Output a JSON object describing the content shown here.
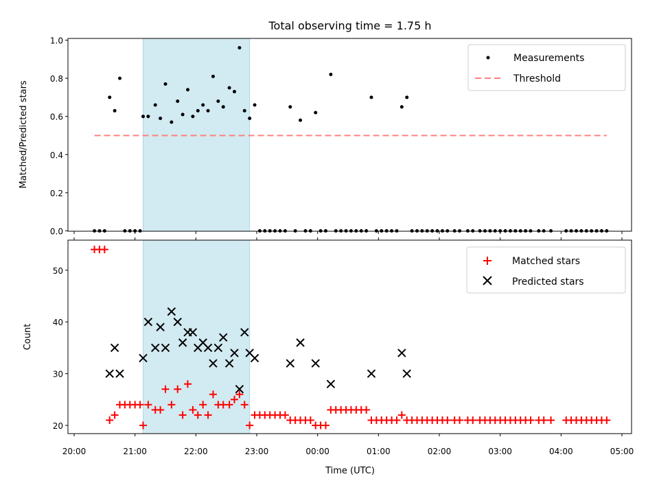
{
  "chart_data": [
    {
      "type": "scatter",
      "title": "Total observing time = 1.75 h",
      "xlabel": "",
      "ylabel": "Matched/Predicted stars",
      "xlim": [
        "20:00",
        "05:00"
      ],
      "ylim": [
        0,
        1.0
      ],
      "yticks": [
        "0.0",
        "0.2",
        "0.4",
        "0.6",
        "0.8",
        "1.0"
      ],
      "highlight_span": [
        "21:08",
        "22:53"
      ],
      "highlight_color": "#add8e6",
      "legend_position": "upper-right",
      "series": [
        {
          "name": "Measurements",
          "color": "#000000",
          "marker": "dot",
          "points": [
            [
              "20:20",
              0
            ],
            [
              "20:25",
              0
            ],
            [
              "20:30",
              0
            ],
            [
              "20:35",
              0.7
            ],
            [
              "20:40",
              0.63
            ],
            [
              "20:45",
              0.8
            ],
            [
              "20:50",
              0
            ],
            [
              "20:55",
              0
            ],
            [
              "21:00",
              0
            ],
            [
              "21:05",
              0
            ],
            [
              "21:08",
              0.6
            ],
            [
              "21:13",
              0.6
            ],
            [
              "21:20",
              0.66
            ],
            [
              "21:25",
              0.59
            ],
            [
              "21:30",
              0.77
            ],
            [
              "21:36",
              0.57
            ],
            [
              "21:42",
              0.68
            ],
            [
              "21:47",
              0.61
            ],
            [
              "21:52",
              0.74
            ],
            [
              "21:57",
              0.6
            ],
            [
              "22:02",
              0.63
            ],
            [
              "22:07",
              0.66
            ],
            [
              "22:12",
              0.63
            ],
            [
              "22:17",
              0.81
            ],
            [
              "22:22",
              0.68
            ],
            [
              "22:27",
              0.65
            ],
            [
              "22:33",
              0.75
            ],
            [
              "22:38",
              0.73
            ],
            [
              "22:43",
              0.96
            ],
            [
              "22:48",
              0.63
            ],
            [
              "22:53",
              0.59
            ],
            [
              "22:58",
              0.66
            ],
            [
              "23:03",
              0
            ],
            [
              "23:08",
              0
            ],
            [
              "23:13",
              0
            ],
            [
              "23:18",
              0
            ],
            [
              "23:23",
              0
            ],
            [
              "23:28",
              0
            ],
            [
              "23:33",
              0.65
            ],
            [
              "23:38",
              0
            ],
            [
              "23:43",
              0.58
            ],
            [
              "23:48",
              0
            ],
            [
              "23:53",
              0
            ],
            [
              "23:58",
              0.62
            ],
            [
              "00:03",
              0
            ],
            [
              "00:08",
              0
            ],
            [
              "00:13",
              0.82
            ],
            [
              "00:18",
              0
            ],
            [
              "00:23",
              0
            ],
            [
              "00:28",
              0
            ],
            [
              "00:33",
              0
            ],
            [
              "00:38",
              0
            ],
            [
              "00:43",
              0
            ],
            [
              "00:48",
              0
            ],
            [
              "00:53",
              0.7
            ],
            [
              "00:58",
              0
            ],
            [
              "01:03",
              0
            ],
            [
              "01:08",
              0
            ],
            [
              "01:13",
              0
            ],
            [
              "01:18",
              0
            ],
            [
              "01:23",
              0.65
            ],
            [
              "01:28",
              0.7
            ],
            [
              "01:33",
              0
            ],
            [
              "01:38",
              0
            ],
            [
              "01:43",
              0
            ],
            [
              "01:48",
              0
            ],
            [
              "01:53",
              0
            ],
            [
              "01:58",
              0
            ],
            [
              "02:03",
              0
            ],
            [
              "02:08",
              0
            ],
            [
              "02:15",
              0
            ],
            [
              "02:20",
              0
            ],
            [
              "02:28",
              0
            ],
            [
              "02:33",
              0
            ],
            [
              "02:40",
              0
            ],
            [
              "02:45",
              0
            ],
            [
              "02:50",
              0
            ],
            [
              "02:55",
              0
            ],
            [
              "03:00",
              0
            ],
            [
              "03:05",
              0
            ],
            [
              "03:10",
              0
            ],
            [
              "03:15",
              0
            ],
            [
              "03:20",
              0
            ],
            [
              "03:25",
              0
            ],
            [
              "03:30",
              0
            ],
            [
              "03:38",
              0
            ],
            [
              "03:43",
              0
            ],
            [
              "03:50",
              0
            ],
            [
              "04:05",
              0
            ],
            [
              "04:10",
              0
            ],
            [
              "04:15",
              0
            ],
            [
              "04:20",
              0
            ],
            [
              "04:25",
              0
            ],
            [
              "04:30",
              0
            ],
            [
              "04:35",
              0
            ],
            [
              "04:40",
              0
            ],
            [
              "04:45",
              0
            ]
          ]
        },
        {
          "name": "Threshold",
          "color": "#ff7f7f",
          "style": "dashed",
          "y": 0.5,
          "x_range": [
            "20:20",
            "04:45"
          ]
        }
      ]
    },
    {
      "type": "scatter",
      "title": "",
      "xlabel": "Time (UTC)",
      "ylabel": "Count",
      "xlim": [
        "20:00",
        "05:00"
      ],
      "ylim": [
        18,
        56
      ],
      "yticks": [
        "20",
        "30",
        "40",
        "50"
      ],
      "xticks": [
        "20:00",
        "21:00",
        "22:00",
        "23:00",
        "00:00",
        "01:00",
        "02:00",
        "03:00",
        "04:00",
        "05:00"
      ],
      "highlight_span": [
        "21:08",
        "22:53"
      ],
      "highlight_color": "#add8e6",
      "legend_position": "upper-right",
      "series": [
        {
          "name": "Matched stars",
          "color": "#ff0000",
          "marker": "plus",
          "points": [
            [
              "20:20",
              54
            ],
            [
              "20:25",
              54
            ],
            [
              "20:30",
              54
            ],
            [
              "20:35",
              21
            ],
            [
              "20:40",
              22
            ],
            [
              "20:45",
              24
            ],
            [
              "20:50",
              24
            ],
            [
              "20:55",
              24
            ],
            [
              "21:00",
              24
            ],
            [
              "21:05",
              24
            ],
            [
              "21:08",
              20
            ],
            [
              "21:13",
              24
            ],
            [
              "21:20",
              23
            ],
            [
              "21:25",
              23
            ],
            [
              "21:30",
              27
            ],
            [
              "21:36",
              24
            ],
            [
              "21:42",
              27
            ],
            [
              "21:47",
              22
            ],
            [
              "21:52",
              28
            ],
            [
              "21:57",
              23
            ],
            [
              "22:02",
              22
            ],
            [
              "22:07",
              24
            ],
            [
              "22:12",
              22
            ],
            [
              "22:17",
              26
            ],
            [
              "22:22",
              24
            ],
            [
              "22:27",
              24
            ],
            [
              "22:33",
              24
            ],
            [
              "22:38",
              25
            ],
            [
              "22:43",
              26
            ],
            [
              "22:48",
              24
            ],
            [
              "22:53",
              20
            ],
            [
              "22:58",
              22
            ],
            [
              "23:03",
              22
            ],
            [
              "23:08",
              22
            ],
            [
              "23:13",
              22
            ],
            [
              "23:18",
              22
            ],
            [
              "23:23",
              22
            ],
            [
              "23:28",
              22
            ],
            [
              "23:33",
              21
            ],
            [
              "23:38",
              21
            ],
            [
              "23:43",
              21
            ],
            [
              "23:48",
              21
            ],
            [
              "23:53",
              21
            ],
            [
              "23:58",
              20
            ],
            [
              "00:03",
              20
            ],
            [
              "00:08",
              20
            ],
            [
              "00:13",
              23
            ],
            [
              "00:18",
              23
            ],
            [
              "00:23",
              23
            ],
            [
              "00:28",
              23
            ],
            [
              "00:33",
              23
            ],
            [
              "00:38",
              23
            ],
            [
              "00:43",
              23
            ],
            [
              "00:48",
              23
            ],
            [
              "00:53",
              21
            ],
            [
              "00:58",
              21
            ],
            [
              "01:03",
              21
            ],
            [
              "01:08",
              21
            ],
            [
              "01:13",
              21
            ],
            [
              "01:18",
              21
            ],
            [
              "01:23",
              22
            ],
            [
              "01:28",
              21
            ],
            [
              "01:33",
              21
            ],
            [
              "01:38",
              21
            ],
            [
              "01:43",
              21
            ],
            [
              "01:48",
              21
            ],
            [
              "01:53",
              21
            ],
            [
              "01:58",
              21
            ],
            [
              "02:03",
              21
            ],
            [
              "02:08",
              21
            ],
            [
              "02:15",
              21
            ],
            [
              "02:20",
              21
            ],
            [
              "02:28",
              21
            ],
            [
              "02:33",
              21
            ],
            [
              "02:40",
              21
            ],
            [
              "02:45",
              21
            ],
            [
              "02:50",
              21
            ],
            [
              "02:55",
              21
            ],
            [
              "03:00",
              21
            ],
            [
              "03:05",
              21
            ],
            [
              "03:10",
              21
            ],
            [
              "03:15",
              21
            ],
            [
              "03:20",
              21
            ],
            [
              "03:25",
              21
            ],
            [
              "03:30",
              21
            ],
            [
              "03:38",
              21
            ],
            [
              "03:43",
              21
            ],
            [
              "03:50",
              21
            ],
            [
              "04:05",
              21
            ],
            [
              "04:10",
              21
            ],
            [
              "04:15",
              21
            ],
            [
              "04:20",
              21
            ],
            [
              "04:25",
              21
            ],
            [
              "04:30",
              21
            ],
            [
              "04:35",
              21
            ],
            [
              "04:40",
              21
            ],
            [
              "04:45",
              21
            ]
          ]
        },
        {
          "name": "Predicted stars",
          "color": "#000000",
          "marker": "x",
          "points": [
            [
              "20:35",
              30
            ],
            [
              "20:40",
              35
            ],
            [
              "20:45",
              30
            ],
            [
              "21:08",
              33
            ],
            [
              "21:13",
              40
            ],
            [
              "21:20",
              35
            ],
            [
              "21:25",
              39
            ],
            [
              "21:30",
              35
            ],
            [
              "21:36",
              42
            ],
            [
              "21:42",
              40
            ],
            [
              "21:47",
              36
            ],
            [
              "21:52",
              38
            ],
            [
              "21:57",
              38
            ],
            [
              "22:02",
              35
            ],
            [
              "22:07",
              36
            ],
            [
              "22:12",
              35
            ],
            [
              "22:17",
              32
            ],
            [
              "22:22",
              35
            ],
            [
              "22:27",
              37
            ],
            [
              "22:33",
              32
            ],
            [
              "22:38",
              34
            ],
            [
              "22:43",
              27
            ],
            [
              "22:48",
              38
            ],
            [
              "22:53",
              34
            ],
            [
              "22:58",
              33
            ],
            [
              "23:33",
              32
            ],
            [
              "23:43",
              36
            ],
            [
              "23:58",
              32
            ],
            [
              "00:13",
              28
            ],
            [
              "00:53",
              30
            ],
            [
              "01:23",
              34
            ],
            [
              "01:28",
              30
            ]
          ]
        }
      ]
    }
  ]
}
